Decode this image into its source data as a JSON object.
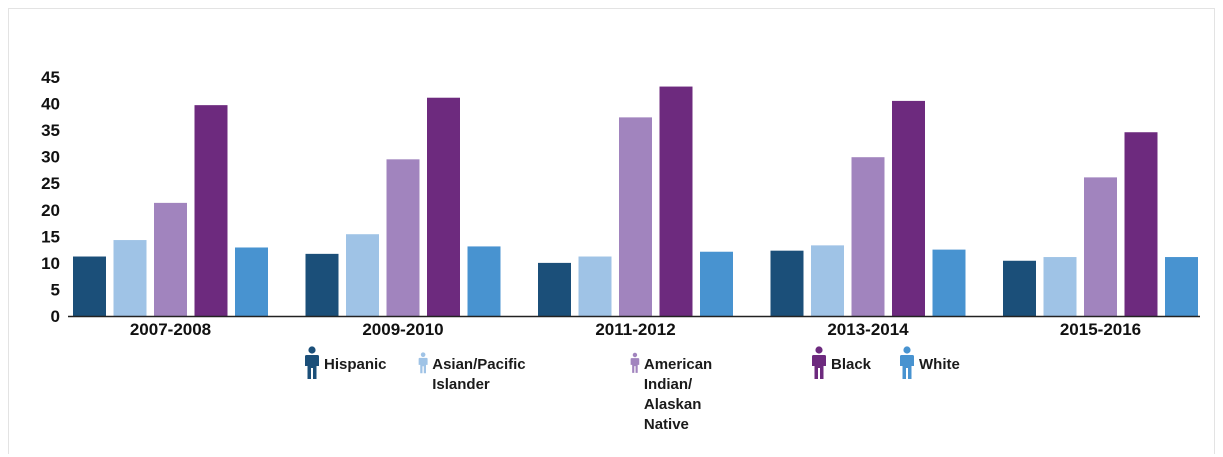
{
  "chart_data": {
    "type": "bar",
    "categories": [
      "2007-2008",
      "2009-2010",
      "2011-2012",
      "2013-2014",
      "2015-2016"
    ],
    "series": [
      {
        "name": "Hispanic",
        "color": "#1b4f79",
        "values": [
          11.2,
          11.7,
          10.0,
          12.3,
          10.4
        ]
      },
      {
        "name": "Asian/Pacific Islander",
        "color": "#9fc3e6",
        "values": [
          14.3,
          15.4,
          11.2,
          13.3,
          11.1
        ]
      },
      {
        "name": "American Indian/\nAlaskan Native",
        "color": "#a184be",
        "values": [
          21.3,
          29.5,
          37.4,
          29.9,
          26.1
        ]
      },
      {
        "name": "Black",
        "color": "#6d2a7e",
        "values": [
          39.7,
          41.1,
          43.2,
          40.5,
          34.6
        ]
      },
      {
        "name": "White",
        "color": "#4893d0",
        "values": [
          12.9,
          13.1,
          12.1,
          12.5,
          11.1
        ]
      }
    ],
    "yticks": [
      0,
      5,
      10,
      15,
      20,
      25,
      30,
      35,
      40,
      45
    ],
    "ylim": [
      0,
      45
    ],
    "grid": false,
    "legend_position": "bottom-center",
    "title": "",
    "xlabel": "",
    "ylabel": ""
  },
  "legend": {
    "icon": "person-icon"
  }
}
